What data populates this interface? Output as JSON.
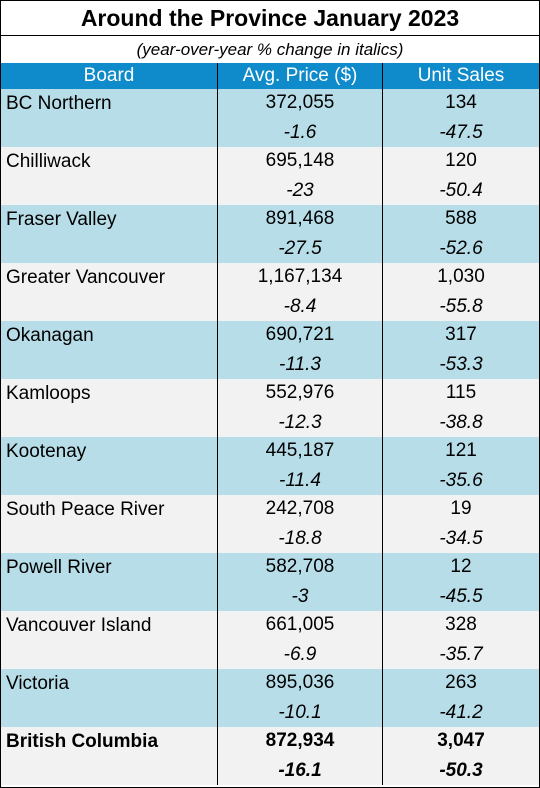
{
  "title": "Around the Province January 2023",
  "subtitle": "(year-over-year % change in italics)",
  "columns": {
    "board": "Board",
    "price": "Avg. Price ($)",
    "sales": "Unit Sales"
  },
  "colors": {
    "header_bg": "#0f8bcb",
    "row_alt": "#b7dde8",
    "row_plain": "#f2f2f2"
  },
  "rows": [
    {
      "board": "BC Northern",
      "price": "372,055",
      "price_change": "-1.6",
      "sales": "134",
      "sales_change": "-47.5"
    },
    {
      "board": "Chilliwack",
      "price": "695,148",
      "price_change": "-23",
      "sales": "120",
      "sales_change": "-50.4"
    },
    {
      "board": "Fraser Valley",
      "price": "891,468",
      "price_change": "-27.5",
      "sales": "588",
      "sales_change": "-52.6"
    },
    {
      "board": "Greater Vancouver",
      "price": "1,167,134",
      "price_change": "-8.4",
      "sales": "1,030",
      "sales_change": "-55.8"
    },
    {
      "board": "Okanagan",
      "price": "690,721",
      "price_change": "-11.3",
      "sales": "317",
      "sales_change": "-53.3"
    },
    {
      "board": "Kamloops",
      "price": "552,976",
      "price_change": "-12.3",
      "sales": "115",
      "sales_change": "-38.8"
    },
    {
      "board": "Kootenay",
      "price": "445,187",
      "price_change": "-11.4",
      "sales": "121",
      "sales_change": "-35.6"
    },
    {
      "board": "South Peace River",
      "price": "242,708",
      "price_change": "-18.8",
      "sales": "19",
      "sales_change": "-34.5"
    },
    {
      "board": "Powell River",
      "price": "582,708",
      "price_change": "-3",
      "sales": "12",
      "sales_change": "-45.5"
    },
    {
      "board": "Vancouver Island",
      "price": "661,005",
      "price_change": "-6.9",
      "sales": "328",
      "sales_change": "-35.7"
    },
    {
      "board": "Victoria",
      "price": "895,036",
      "price_change": "-10.1",
      "sales": "263",
      "sales_change": "-41.2"
    },
    {
      "board": "British Columbia",
      "price": "872,934",
      "price_change": "-16.1",
      "sales": "3,047",
      "sales_change": "-50.3"
    }
  ]
}
